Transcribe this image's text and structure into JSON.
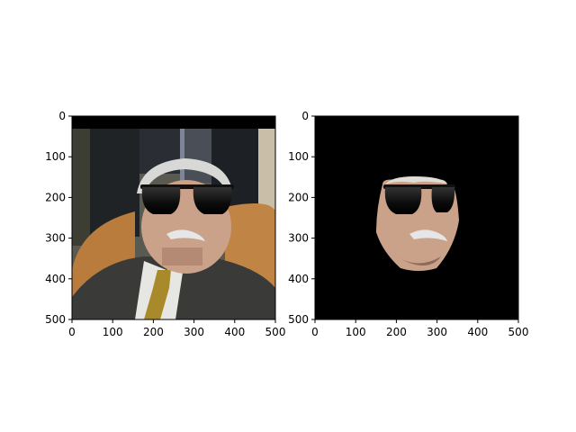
{
  "chart_data": [
    {
      "type": "image",
      "title": "",
      "xlabel": "",
      "ylabel": "",
      "xlim": [
        0,
        500
      ],
      "ylim": [
        500,
        0
      ],
      "xticks": [
        0,
        100,
        200,
        300,
        400,
        500
      ],
      "yticks": [
        0,
        100,
        200,
        300,
        400,
        500
      ],
      "content": "photo of man in suit and tie with sunglasses overlay"
    },
    {
      "type": "image",
      "title": "",
      "xlabel": "",
      "ylabel": "",
      "xlim": [
        0,
        500
      ],
      "ylim": [
        500,
        0
      ],
      "xticks": [
        0,
        100,
        200,
        300,
        400,
        500
      ],
      "yticks": [
        0,
        100,
        200,
        300,
        400,
        500
      ],
      "content": "segmented face with sunglasses on black background"
    }
  ],
  "colors": {
    "background": "#ffffff",
    "axis": "#000000",
    "suit": "#3a3a38",
    "couch": "#b97c3c",
    "skin": "#caa28a",
    "hair": "#d8d8d6",
    "glasses": "#111111",
    "tie": "#a88a2a"
  }
}
